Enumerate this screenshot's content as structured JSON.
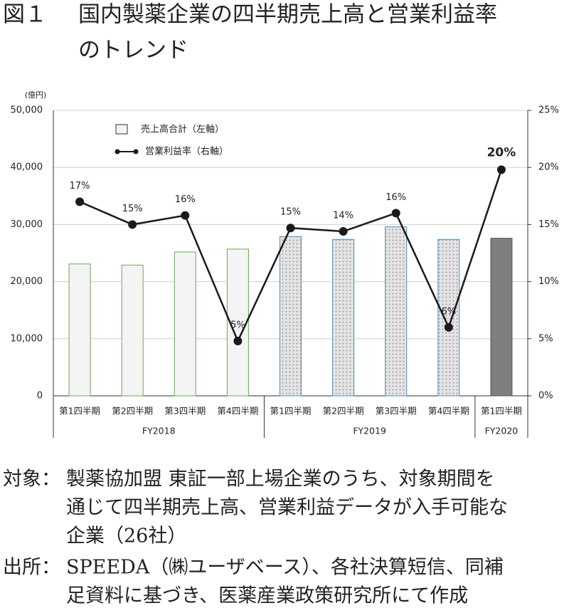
{
  "chart_data": {
    "type": "bar-line",
    "figure_label": "図１",
    "title": [
      "国内製薬企業の四半期売上高と営業利益率",
      "のトレンド"
    ],
    "y_unit": "(億円)",
    "groups": [
      {
        "name": "FY2018",
        "categories": [
          "第1四半期",
          "第2四半期",
          "第3四半期",
          "第4四半期"
        ],
        "fill": "#f4f4f4",
        "stroke": "#6aa84f"
      },
      {
        "name": "FY2019",
        "categories": [
          "第1四半期",
          "第2四半期",
          "第3四半期",
          "第4四半期"
        ],
        "fill": "#d9d9d9",
        "stroke": "#4a8fb8",
        "pattern": "dots"
      },
      {
        "name": "FY2020",
        "categories": [
          "第1四半期"
        ],
        "fill": "#7f7f7f",
        "stroke": "#555555"
      }
    ],
    "series": [
      {
        "name": "売上高合計（左軸）",
        "type": "bar",
        "values": [
          23100,
          22900,
          25200,
          25700,
          27900,
          27400,
          29600,
          27400,
          27600
        ]
      },
      {
        "name": "営業利益率（右軸）",
        "type": "line",
        "axis": "y2",
        "color": "#1a1a1a",
        "values": [
          17,
          15,
          15.8,
          4.8,
          14.7,
          14.4,
          16,
          6,
          19.8
        ],
        "value_labels": [
          "17%",
          "15%",
          "16%",
          "5%",
          "15%",
          "14%",
          "16%",
          "6%",
          "20%"
        ]
      }
    ],
    "ylim": [
      0,
      50000
    ],
    "yticks": [
      0,
      {
        "value": 10000,
        "label": "10,000"
      },
      {
        "value": 20000,
        "label": "20,000"
      },
      {
        "value": 30000,
        "label": "30,000"
      },
      {
        "value": 40000,
        "label": "40,000"
      },
      {
        "value": 50000,
        "label": "50,000"
      }
    ],
    "y2lim": [
      0,
      25
    ],
    "y2ticks": [
      {
        "value": 0,
        "label": "0%"
      },
      {
        "value": 5,
        "label": "5%"
      },
      {
        "value": 10,
        "label": "10%"
      },
      {
        "value": 15,
        "label": "15%"
      },
      {
        "value": 20,
        "label": "20%"
      },
      {
        "value": 25,
        "label": "25%"
      }
    ],
    "grid": true,
    "legend": "top-left",
    "notes": [
      {
        "label": "対象：",
        "lines": [
          "製薬協加盟 東証一部上場企業のうち、対象期間を",
          "通じて四半期売上高、営業利益データが入手可能な",
          "企業（26社）"
        ]
      },
      {
        "label": "出所：",
        "lines": [
          "SPEEDA（㈱ユーザベース）、各社決算短信、同補",
          "足資料に基づき、医薬産業政策研究所にて作成"
        ]
      }
    ]
  }
}
